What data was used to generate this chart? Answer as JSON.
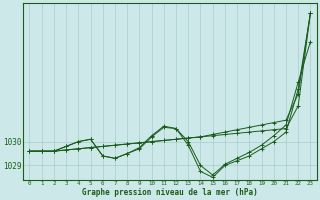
{
  "title": "Graphe pression niveau de la mer (hPa)",
  "xlabel": "Graphe pression niveau de la mer (hPa)",
  "background_color": "#cde8e8",
  "grid_color": "#a8cccc",
  "line_color": "#1a5c1a",
  "ylim": [
    1028.4,
    1035.8
  ],
  "xlim": [
    -0.5,
    23.5
  ],
  "ytick_values": [
    1029,
    1030
  ],
  "series": [
    [
      1029.6,
      1029.6,
      1029.6,
      1029.65,
      1029.7,
      1029.75,
      1029.8,
      1029.85,
      1029.9,
      1029.95,
      1030.0,
      1030.05,
      1030.1,
      1030.15,
      1030.2,
      1030.25,
      1030.3,
      1030.35,
      1030.4,
      1030.45,
      1030.5,
      1030.55,
      1031.5,
      1035.4
    ],
    [
      1029.6,
      1029.6,
      1029.6,
      1029.65,
      1029.7,
      1029.75,
      1029.8,
      1029.85,
      1029.9,
      1029.95,
      1030.0,
      1030.05,
      1030.1,
      1030.15,
      1030.2,
      1030.3,
      1030.4,
      1030.5,
      1030.6,
      1030.7,
      1030.8,
      1030.9,
      1032.0,
      1035.4
    ],
    [
      1029.6,
      1029.6,
      1029.6,
      1029.8,
      1030.0,
      1030.1,
      1029.4,
      1029.3,
      1029.5,
      1029.7,
      1030.2,
      1030.6,
      1030.55,
      1030.0,
      1029.0,
      1028.6,
      1029.05,
      1029.3,
      1029.55,
      1029.85,
      1030.25,
      1030.7,
      1032.5,
      1034.2
    ],
    [
      1029.6,
      1029.6,
      1029.6,
      1029.8,
      1030.0,
      1030.1,
      1029.4,
      1029.3,
      1029.5,
      1029.75,
      1030.25,
      1030.65,
      1030.55,
      1029.85,
      1028.75,
      1028.5,
      1029.0,
      1029.2,
      1029.4,
      1029.7,
      1030.0,
      1030.4,
      1032.2,
      1035.4
    ]
  ]
}
